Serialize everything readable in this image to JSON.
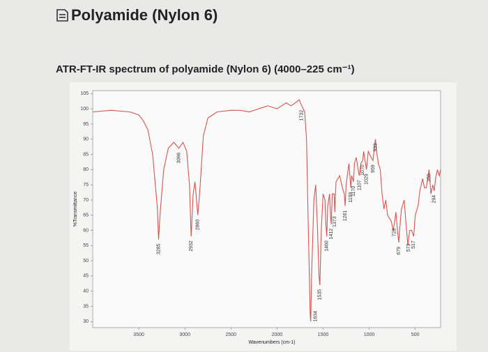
{
  "title": "Polyamide (Nylon 6)",
  "chart_data": {
    "type": "line",
    "title": "ATR-FT-IR spectrum of polyamide (Nylon 6) (4000–225 cm⁻¹)",
    "xlabel": "Wavenumbers (cm-1)",
    "ylabel": "%Transmittance",
    "color": "#d9534f",
    "xlim": [
      4000,
      225
    ],
    "ylim": [
      28,
      106
    ],
    "xticks": [
      3500,
      3000,
      2500,
      2000,
      1500,
      1000,
      500
    ],
    "yticks": [
      30,
      35,
      40,
      45,
      50,
      55,
      60,
      65,
      70,
      75,
      80,
      85,
      90,
      95,
      100,
      105
    ],
    "x": [
      4000,
      3800,
      3600,
      3500,
      3450,
      3400,
      3350,
      3300,
      3285,
      3270,
      3230,
      3180,
      3120,
      3066,
      3020,
      2980,
      2950,
      2932,
      2910,
      2890,
      2860,
      2840,
      2800,
      2750,
      2650,
      2500,
      2400,
      2300,
      2200,
      2100,
      2000,
      1950,
      1900,
      1850,
      1800,
      1760,
      1732,
      1700,
      1680,
      1660,
      1640,
      1634,
      1625,
      1600,
      1580,
      1560,
      1545,
      1535,
      1520,
      1500,
      1480,
      1470,
      1460,
      1450,
      1430,
      1420,
      1412,
      1400,
      1380,
      1373,
      1360,
      1320,
      1290,
      1270,
      1261,
      1250,
      1220,
      1199,
      1190,
      1170,
      1160,
      1140,
      1120,
      1107,
      1090,
      1070,
      1060,
      1040,
      1029,
      1010,
      980,
      959,
      940,
      933,
      920,
      900,
      880,
      860,
      840,
      820,
      800,
      760,
      740,
      728,
      710,
      690,
      679,
      670,
      650,
      620,
      600,
      580,
      573,
      560,
      540,
      517,
      500,
      470,
      450,
      420,
      400,
      380,
      360,
      350,
      330,
      310,
      294,
      280,
      260,
      240,
      225
    ],
    "values": [
      99,
      99.5,
      99,
      98,
      96,
      93,
      85,
      68,
      57,
      65,
      80,
      87,
      89,
      87,
      89,
      86,
      75,
      58,
      72,
      76,
      65,
      72,
      91,
      97,
      99,
      99.5,
      99.5,
      99,
      100,
      101,
      100,
      101,
      102,
      101,
      102,
      103,
      101,
      99,
      90,
      60,
      32,
      30,
      45,
      70,
      75,
      60,
      45,
      42,
      60,
      72,
      70,
      62,
      58,
      68,
      72,
      65,
      62,
      72,
      72,
      66,
      76,
      78,
      74,
      72,
      68,
      75,
      82,
      74,
      78,
      76,
      82,
      84,
      80,
      78,
      82,
      83,
      86,
      82,
      80,
      86,
      84,
      83,
      88,
      90,
      86,
      82,
      80,
      72,
      67,
      70,
      65,
      63,
      60,
      62,
      66,
      59,
      56,
      60,
      67,
      70,
      62,
      55,
      57,
      60,
      60,
      58,
      65,
      68,
      73,
      77,
      74,
      74,
      78,
      80,
      72,
      75,
      73,
      77,
      80,
      78,
      80
    ],
    "peak_labels": [
      3285,
      3066,
      2932,
      2860,
      1732,
      1634,
      1535,
      1460,
      1412,
      1373,
      1261,
      1199,
      1170,
      1107,
      1070,
      1029,
      959,
      933,
      728,
      679,
      573,
      517,
      350,
      294
    ]
  }
}
